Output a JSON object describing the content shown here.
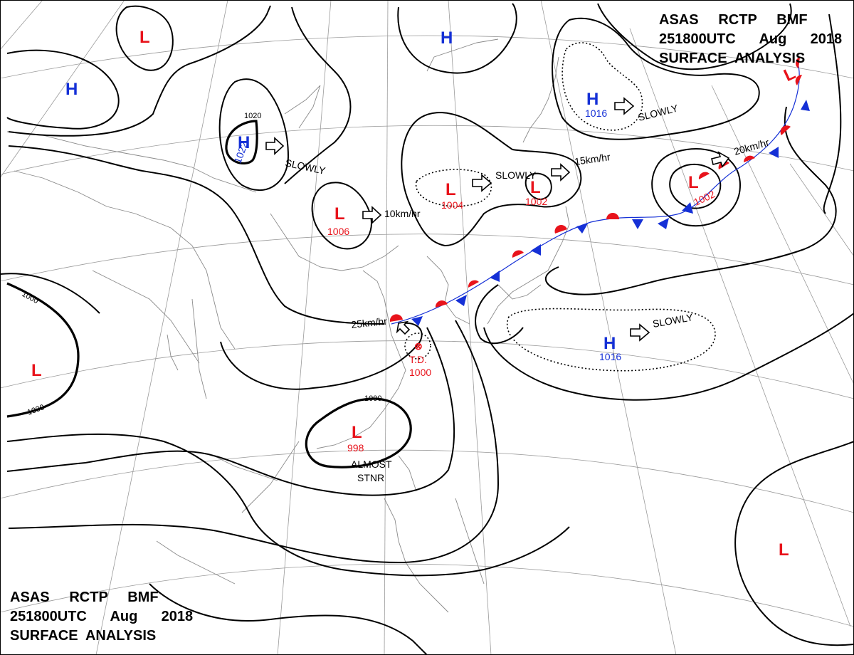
{
  "header": {
    "line1": "ASAS     RCTP     BMF",
    "line2": "251800UTC      Aug      2018",
    "line3": "SURFACE  ANALYSIS"
  },
  "colors": {
    "low": "#e8131b",
    "high": "#1530d6",
    "warm_front": "#e8131b",
    "cold_front": "#1530d6"
  },
  "systems": [
    {
      "id": "low-nw",
      "type": "L",
      "value": ""
    },
    {
      "id": "high-w",
      "type": "H",
      "value": ""
    },
    {
      "id": "high-1022",
      "type": "H",
      "value": "1022"
    },
    {
      "id": "high-north",
      "type": "H",
      "value": ""
    },
    {
      "id": "low-1006",
      "type": "L",
      "value": "1006"
    },
    {
      "id": "low-1004",
      "type": "L",
      "value": "1004"
    },
    {
      "id": "low-1002-a",
      "type": "L",
      "value": "1002"
    },
    {
      "id": "high-1016-ne",
      "type": "H",
      "value": "1016"
    },
    {
      "id": "low-1002-b",
      "type": "L",
      "value": "1002"
    },
    {
      "id": "low-ne",
      "type": "L",
      "value": ""
    },
    {
      "id": "low-west",
      "type": "L",
      "value": ""
    },
    {
      "id": "td-1000",
      "type": "T.D.",
      "value": "1000"
    },
    {
      "id": "low-998",
      "type": "L",
      "value": "998"
    },
    {
      "id": "high-1016-e",
      "type": "H",
      "value": "1016"
    },
    {
      "id": "low-se",
      "type": "L",
      "value": ""
    }
  ],
  "motion": {
    "slowly_1": "SLOWLY",
    "speed_10": "10km/hr",
    "slowly_2": "SLOWLY",
    "speed_15": "15km/hr",
    "slowly_3": "SLOWLY",
    "speed_20": "20km/hr",
    "speed_25": "25km/hr",
    "slowly_4": "SLOWLY",
    "almost": "ALMOST",
    "stnr": "STNR"
  },
  "isobar_labels": {
    "iso_1020": "1020",
    "iso_1000_a": "1000",
    "iso_1000_b": "1000",
    "iso_1000_c": "1000"
  }
}
